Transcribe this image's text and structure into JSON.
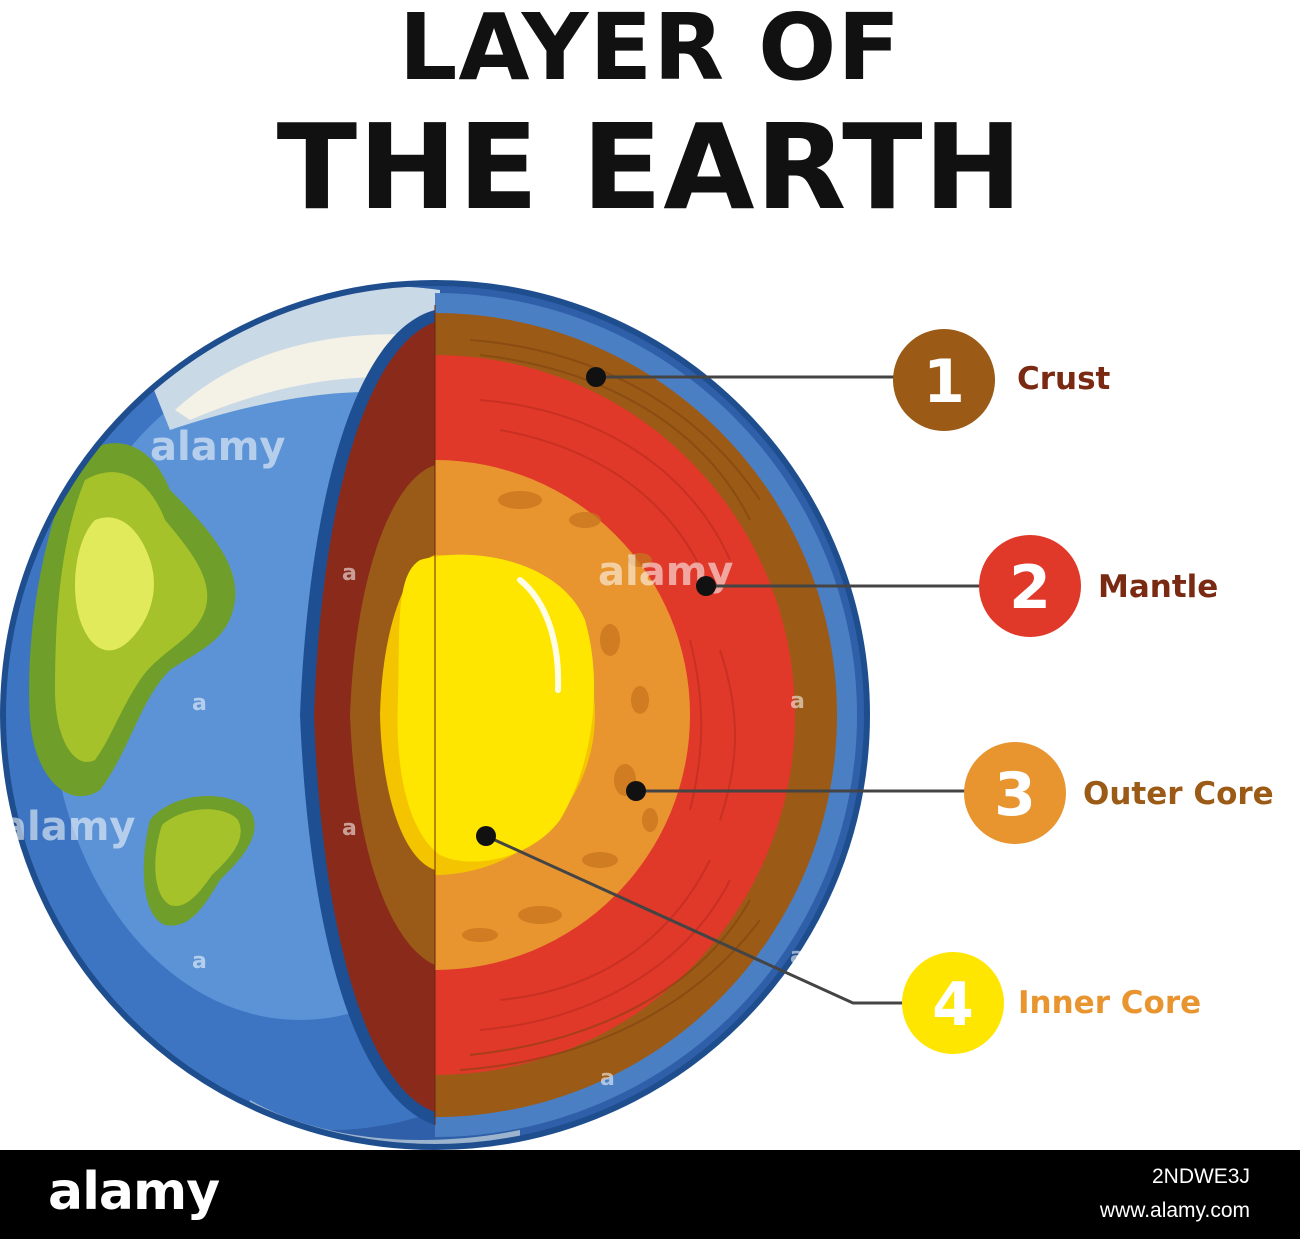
{
  "title": {
    "line1": "LAYER OF",
    "line2": "THE EARTH"
  },
  "layers": [
    {
      "number": "1",
      "name": "Crust",
      "badge_color": "#9b5a16",
      "label_color": "#7a2a12"
    },
    {
      "number": "2",
      "name": "Mantle",
      "badge_color": "#e0392a",
      "label_color": "#7a2a12"
    },
    {
      "number": "3",
      "name": "Outer Core",
      "badge_color": "#e89530",
      "label_color": "#9b5a16"
    },
    {
      "number": "4",
      "name": "Inner Core",
      "badge_color": "#ffe600",
      "label_color": "#e89530"
    }
  ],
  "watermarks": {
    "text": "alamy",
    "letter": "a"
  },
  "footer": {
    "logo": "alamy",
    "image_id": "2NDWE3J",
    "url": "www.alamy.com"
  }
}
